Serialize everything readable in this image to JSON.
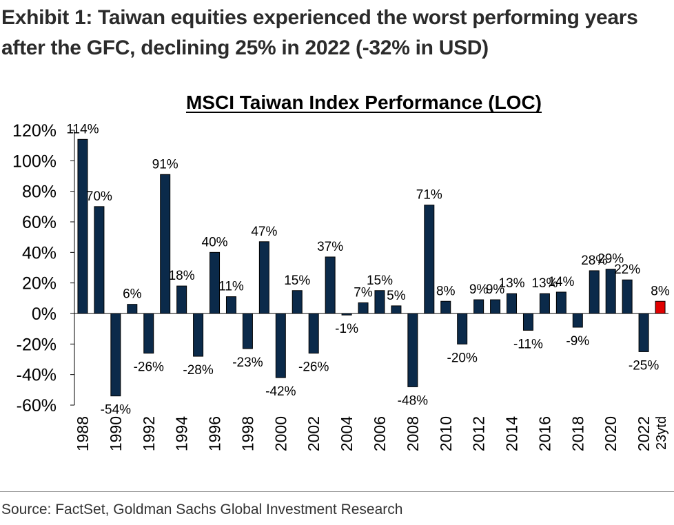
{
  "exhibit_title": "Exhibit 1: Taiwan equities experienced the worst performing years after the GFC, declining 25% in 2022 (-32% in USD)",
  "source": "Source: FactSet, Goldman Sachs Global Investment Research",
  "colors": {
    "bar": "#0b2a4a",
    "bar_stroke": "#000000",
    "highlight": "#e00000",
    "axis": "#000000"
  },
  "chart_data": {
    "type": "bar",
    "title": "MSCI Taiwan Index Performance (LOC)",
    "xlabel": "",
    "ylabel": "",
    "ylim": [
      -60,
      120
    ],
    "yticks": [
      -60,
      -40,
      -20,
      0,
      20,
      40,
      60,
      80,
      100,
      120
    ],
    "ytick_labels": [
      "-60%",
      "-40%",
      "-20%",
      "0%",
      "20%",
      "40%",
      "60%",
      "80%",
      "100%",
      "120%"
    ],
    "categories": [
      "1988",
      "1989",
      "1990",
      "1991",
      "1992",
      "1993",
      "1994",
      "1995",
      "1996",
      "1997",
      "1998",
      "1999",
      "2000",
      "2001",
      "2002",
      "2003",
      "2004",
      "2005",
      "2006",
      "2007",
      "2008",
      "2009",
      "2010",
      "2011",
      "2012",
      "2013",
      "2014",
      "2015",
      "2016",
      "2017",
      "2018",
      "2019",
      "2020",
      "2021",
      "2022",
      "23ytd"
    ],
    "xtick_labels": [
      "1988",
      "",
      "1990",
      "",
      "1992",
      "",
      "1994",
      "",
      "1996",
      "",
      "1998",
      "",
      "2000",
      "",
      "2002",
      "",
      "2004",
      "",
      "2006",
      "",
      "2008",
      "",
      "2010",
      "",
      "2012",
      "",
      "2014",
      "",
      "2016",
      "",
      "2018",
      "",
      "2020",
      "",
      "2022",
      "23ytd"
    ],
    "values": [
      114,
      70,
      -54,
      6,
      -26,
      91,
      18,
      -28,
      40,
      11,
      -23,
      47,
      -42,
      15,
      -26,
      37,
      -1,
      7,
      15,
      5,
      -48,
      71,
      8,
      -20,
      9,
      9,
      13,
      -11,
      13,
      14,
      -9,
      28,
      29,
      22,
      -25,
      8
    ],
    "data_labels": [
      "114%",
      "70%",
      "-54%",
      "6%",
      "-26%",
      "91%",
      "18%",
      "-28%",
      "40%",
      "11%",
      "-23%",
      "47%",
      "-42%",
      "15%",
      "-26%",
      "37%",
      "-1%",
      "7%",
      "15%",
      "5%",
      "-48%",
      "71%",
      "8%",
      "-20%",
      "9%",
      "9%",
      "13%",
      "-11%",
      "13%",
      "14%",
      "-9%",
      "28%",
      "29%",
      "22%",
      "-25%",
      "8%"
    ],
    "highlight_category": "23ytd",
    "grid": false,
    "legend": "none"
  }
}
